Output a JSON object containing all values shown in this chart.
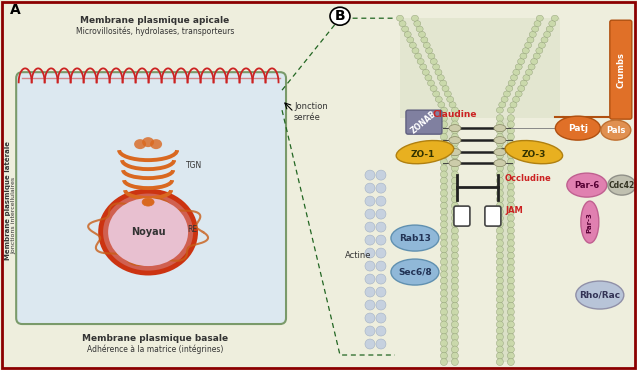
{
  "bg_color": "#eeeedd",
  "panel_A": {
    "label": "A",
    "cell_bg": "#dce8f0",
    "cell_border": "#7a9a6a",
    "apical_text_bold": "Membrane plasmique apicale",
    "apical_text_normal": "Microvillosités, hydrolases, transporteurs",
    "basal_text_bold": "Membrane plasmique basale",
    "basal_text_normal": "Adhérence à la matrice (intégrines)",
    "lateral_text_bold": "Membrane plasmique latérale",
    "lateral_text_normal": "Jonctions intercellulaires",
    "jonction_text": "Jonction\nserrée",
    "nucleus_label": "Noyau",
    "tgn_label": "TGN",
    "re_label": "RE",
    "microvilli_color": "#cc2222",
    "nucleus_outer_color": "#cc3311",
    "nucleus_inner_color": "#e8c0d0",
    "tgn_color": "#d96820",
    "re_color": "#c85e18"
  },
  "panel_B": {
    "label": "B",
    "membrane_color": "#b8c8a0",
    "bead_color": "#c8d8a8",
    "bead_edge": "#8a9870",
    "actine_label": "Actine",
    "Claudine_label": "Claudine",
    "ZO1_label": "ZO-1",
    "ZO3_label": "ZO-3",
    "ZONAB_label": "ZONAB",
    "Occludine_label": "Occludine",
    "JAM_label": "JAM",
    "Crumbs_label": "Crumbs",
    "Patj_label": "Patj",
    "Pals_label": "Pals",
    "Par6_label": "Par-6",
    "Par3_label": "Par-3",
    "Cdc42_label": "Cdc42",
    "RhoRac_label": "Rho/Rac",
    "Rab13_label": "Rab13",
    "Sec68_label": "Sec6/8",
    "ZO1_color": "#e8b020",
    "ZO3_color": "#e8b020",
    "ZONAB_color": "#8080a0",
    "Crumbs_color": "#e07028",
    "Patj_color": "#e07028",
    "Pals_color": "#e09050",
    "Par6_color": "#e080b0",
    "Par3_color": "#e080b0",
    "Cdc42_color": "#c0c0b0",
    "RhoRac_color": "#b8c4d8",
    "Rab13_color": "#90b8d8",
    "Sec68_color": "#90b8d8",
    "actine_bead_color": "#c0cce0",
    "actine_bead_edge": "#9aaac0",
    "red_label": "#cc2222",
    "dark_label": "#553300"
  },
  "dashed_color": "#226622",
  "border_color": "#8B0000",
  "text_dark": "#333333"
}
